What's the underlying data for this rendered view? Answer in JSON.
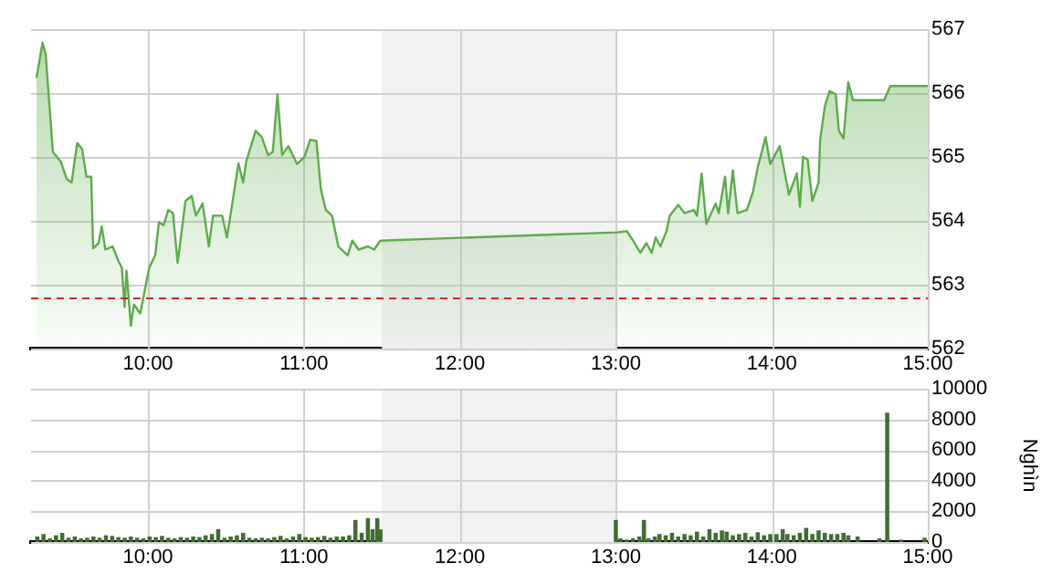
{
  "chart_data": [
    {
      "type": "area",
      "color": "#5cac4a",
      "grid": true,
      "legend": false,
      "marker": "none",
      "x": [
        9.285,
        9.324,
        9.344,
        9.39,
        9.44,
        9.48,
        9.51,
        9.546,
        9.578,
        9.605,
        9.636,
        9.648,
        9.683,
        9.703,
        9.727,
        9.773,
        9.812,
        9.832,
        9.85,
        9.862,
        9.89,
        9.91,
        9.95,
        10.008,
        10.046,
        10.07,
        10.1,
        10.13,
        10.16,
        10.19,
        10.24,
        10.28,
        10.307,
        10.35,
        10.39,
        10.417,
        10.476,
        10.506,
        10.534,
        10.58,
        10.61,
        10.63,
        10.69,
        10.73,
        10.77,
        10.8,
        10.83,
        10.86,
        10.9,
        10.956,
        11.003,
        11.04,
        11.08,
        11.108,
        11.14,
        11.18,
        11.22,
        11.28,
        11.31,
        11.35,
        11.41,
        11.45,
        11.49,
        13.01,
        13.07,
        13.11,
        13.157,
        13.196,
        13.23,
        13.255,
        13.286,
        13.325,
        13.345,
        13.4,
        13.44,
        13.5,
        13.52,
        13.55,
        13.58,
        13.64,
        13.66,
        13.7,
        13.72,
        13.75,
        13.78,
        13.84,
        13.88,
        13.91,
        13.96,
        13.99,
        14.05,
        14.11,
        14.16,
        14.18,
        14.2,
        14.23,
        14.26,
        14.3,
        14.31,
        14.34,
        14.37,
        14.41,
        14.43,
        14.46,
        14.49,
        14.52,
        14.72,
        14.76,
        15.0
      ],
      "values": [
        566.24,
        566.79,
        566.6,
        565.08,
        564.93,
        564.65,
        564.6,
        565.22,
        565.12,
        564.69,
        564.69,
        563.57,
        563.65,
        563.91,
        563.55,
        563.6,
        563.36,
        563.27,
        562.65,
        563.22,
        562.36,
        562.69,
        562.55,
        563.27,
        563.46,
        563.98,
        563.93,
        564.17,
        564.12,
        563.34,
        564.31,
        564.39,
        564.08,
        564.27,
        563.6,
        564.08,
        564.08,
        563.74,
        564.17,
        564.9,
        564.6,
        564.93,
        565.41,
        565.31,
        565.03,
        565.08,
        565.98,
        565.03,
        565.17,
        564.89,
        565.0,
        565.27,
        565.25,
        564.5,
        564.17,
        564.08,
        563.6,
        563.46,
        563.69,
        563.55,
        563.6,
        563.55,
        563.69,
        563.82,
        563.84,
        563.69,
        563.5,
        563.65,
        563.5,
        563.74,
        563.6,
        563.84,
        564.08,
        564.25,
        564.12,
        564.17,
        564.08,
        564.74,
        563.95,
        564.27,
        564.12,
        564.69,
        564.12,
        564.79,
        564.12,
        564.17,
        564.46,
        564.84,
        565.31,
        564.89,
        565.17,
        564.41,
        564.74,
        564.22,
        565.0,
        564.96,
        564.31,
        564.6,
        565.27,
        565.79,
        566.03,
        565.98,
        565.41,
        565.29,
        566.17,
        565.89,
        565.89,
        566.11,
        566.11
      ],
      "xlim": [
        9.25,
        15
      ],
      "xticks": [
        {
          "value": 10,
          "label": "10:00"
        },
        {
          "value": 11,
          "label": "11:00"
        },
        {
          "value": 12,
          "label": "12:00"
        },
        {
          "value": 13,
          "label": "13:00"
        },
        {
          "value": 14,
          "label": "14:00"
        },
        {
          "value": 15,
          "label": "15:00"
        }
      ],
      "ylim": [
        562,
        567
      ],
      "yticks": [
        562,
        563,
        564,
        565,
        566,
        567
      ],
      "bands": [
        {
          "axis": "x",
          "from": 11.5,
          "to": 13,
          "color": "#f1f1f1"
        }
      ],
      "ref_lines": [
        {
          "axis": "y",
          "value": 562.8,
          "color": "#e02020",
          "line_style": "dashed"
        }
      ]
    },
    {
      "type": "bar",
      "color": "#3e6e30",
      "grid": true,
      "legend": false,
      "ylabel": "Nghìn",
      "x": [
        9.29,
        9.33,
        9.37,
        9.41,
        9.45,
        9.49,
        9.53,
        9.57,
        9.61,
        9.65,
        9.69,
        9.73,
        9.77,
        9.81,
        9.85,
        9.89,
        9.93,
        9.97,
        10.01,
        10.05,
        10.09,
        10.13,
        10.17,
        10.21,
        10.25,
        10.29,
        10.33,
        10.37,
        10.41,
        10.45,
        10.49,
        10.53,
        10.57,
        10.61,
        10.65,
        10.69,
        10.73,
        10.77,
        10.81,
        10.85,
        10.89,
        10.93,
        10.97,
        11.01,
        11.05,
        11.09,
        11.13,
        11.17,
        11.21,
        11.25,
        11.29,
        11.33,
        11.37,
        11.41,
        11.44,
        11.47,
        11.49,
        13.0,
        13.03,
        13.07,
        13.11,
        13.15,
        13.18,
        13.21,
        13.25,
        13.28,
        13.32,
        13.36,
        13.4,
        13.44,
        13.48,
        13.52,
        13.56,
        13.6,
        13.64,
        13.68,
        13.71,
        13.75,
        13.79,
        13.83,
        13.87,
        13.91,
        13.95,
        13.99,
        14.03,
        14.07,
        14.1,
        14.14,
        14.18,
        14.22,
        14.26,
        14.3,
        14.34,
        14.38,
        14.42,
        14.46,
        14.49,
        14.55,
        14.69,
        14.74,
        14.83,
        14.98
      ],
      "values": [
        320,
        480,
        200,
        400,
        560,
        240,
        320,
        200,
        240,
        320,
        240,
        400,
        360,
        280,
        240,
        320,
        240,
        200,
        320,
        280,
        360,
        240,
        200,
        280,
        240,
        320,
        280,
        400,
        480,
        800,
        240,
        320,
        400,
        560,
        240,
        200,
        240,
        200,
        280,
        360,
        200,
        320,
        480,
        280,
        240,
        280,
        360,
        240,
        320,
        320,
        400,
        1400,
        560,
        1520,
        800,
        1520,
        800,
        1400,
        200,
        120,
        200,
        320,
        1400,
        200,
        320,
        480,
        400,
        560,
        320,
        480,
        400,
        640,
        320,
        800,
        560,
        720,
        640,
        400,
        480,
        560,
        320,
        600,
        400,
        480,
        480,
        800,
        480,
        400,
        560,
        880,
        480,
        720,
        560,
        480,
        480,
        560,
        400,
        320,
        200,
        8400,
        120,
        240
      ],
      "xlim": [
        9.25,
        15
      ],
      "xticks": [
        {
          "value": 10,
          "label": "10:00"
        },
        {
          "value": 11,
          "label": "11:00"
        },
        {
          "value": 12,
          "label": "12:00"
        },
        {
          "value": 13,
          "label": "13:00"
        },
        {
          "value": 14,
          "label": "14:00"
        },
        {
          "value": 15,
          "label": "15:00"
        }
      ],
      "ylim": [
        0,
        10000
      ],
      "yticks": [
        0,
        2000,
        4000,
        6000,
        8000,
        10000
      ],
      "bands": [
        {
          "axis": "x",
          "from": 11.5,
          "to": 13,
          "color": "#f1f1f1"
        }
      ]
    }
  ]
}
